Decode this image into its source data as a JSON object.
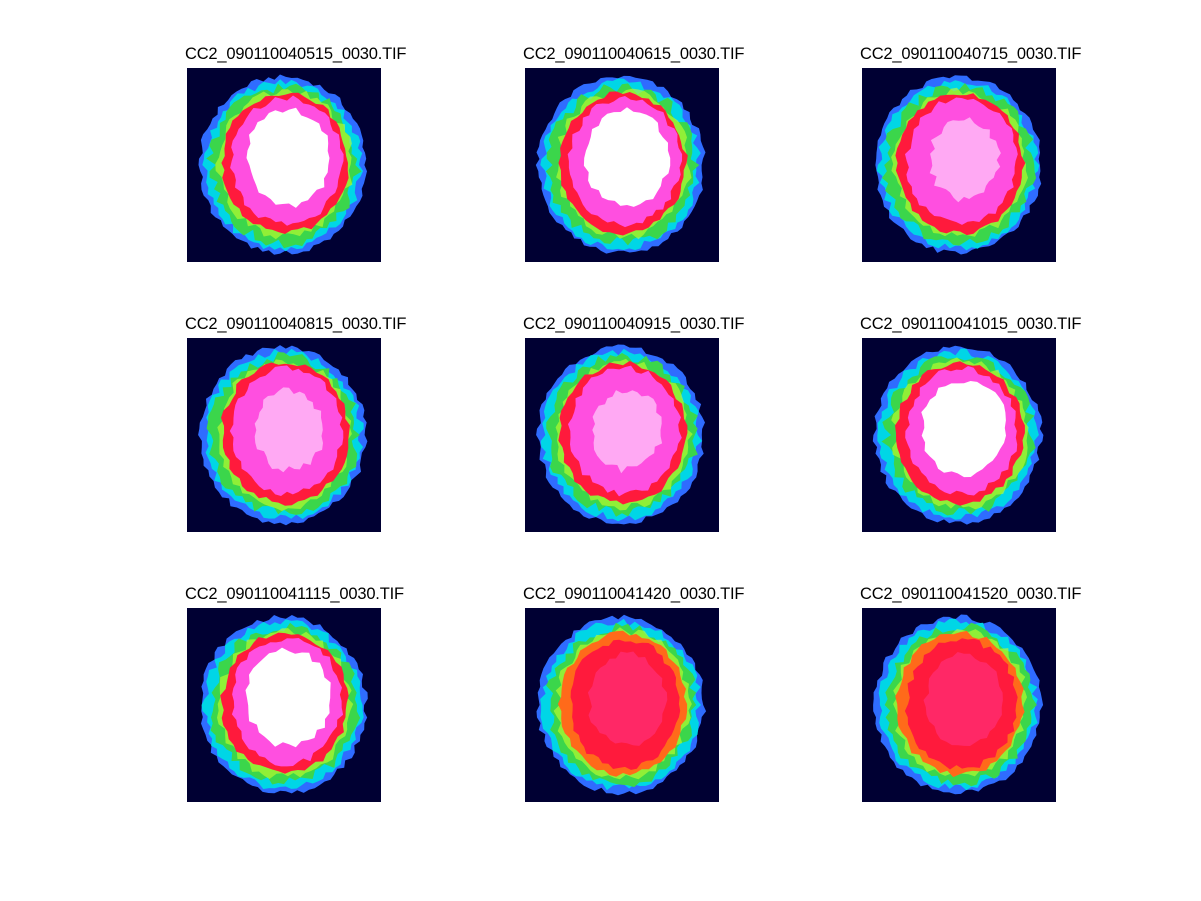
{
  "figure": {
    "background": "#ffffff",
    "panels": [
      {
        "title": "CC2_090110040515_0030.TIF",
        "core": "white"
      },
      {
        "title": "CC2_090110040615_0030.TIF",
        "core": "white"
      },
      {
        "title": "CC2_090110040715_0030.TIF",
        "core": "pink"
      },
      {
        "title": "CC2_090110040815_0030.TIF",
        "core": "pink"
      },
      {
        "title": "CC2_090110040915_0030.TIF",
        "core": "pink"
      },
      {
        "title": "CC2_090110041015_0030.TIF",
        "core": "white"
      },
      {
        "title": "CC2_090110041115_0030.TIF",
        "core": "white"
      },
      {
        "title": "CC2_090110041420_0030.TIF",
        "core": "red"
      },
      {
        "title": "CC2_090110041520_0030.TIF",
        "core": "red"
      }
    ]
  },
  "colors": {
    "image_background": "#000033",
    "outer_ring": "#2f6cff",
    "cyan_ring": "#00d6e6",
    "green_ring": "#3bd64b",
    "yellow_ring": "#c9ff2a",
    "red_zone": "#ff1a3c",
    "pink_zone": "#ff4fe0",
    "white_core": "#ffffff"
  }
}
